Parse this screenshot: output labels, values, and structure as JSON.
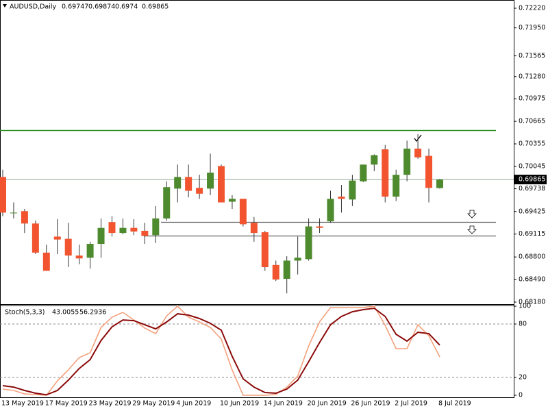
{
  "chart_data": [
    {
      "type": "candlestick",
      "title": "AUDUSD,Daily",
      "categories": [
        "13 May 2019",
        null,
        null,
        null,
        "17 May 2019",
        null,
        null,
        null,
        "23 May 2019",
        null,
        null,
        null,
        "29 May 2019",
        null,
        null,
        null,
        "4 Jun 2019",
        null,
        null,
        null,
        "10 Jun 2019",
        null,
        null,
        null,
        "14 Jun 2019",
        null,
        null,
        null,
        "20 Jun 2019",
        null,
        null,
        null,
        "26 Jun 2019",
        null,
        null,
        null,
        "2 Jul 2019",
        null,
        null,
        null,
        "8 Jul 2019"
      ],
      "open": [
        0.699,
        0.694,
        0.6943,
        0.6926,
        0.6886,
        0.6908,
        0.6905,
        0.6882,
        0.6879,
        0.6898,
        0.6928,
        0.6913,
        0.692,
        0.6916,
        0.691,
        0.6933,
        0.6974,
        0.699,
        0.6975,
        0.6974,
        0.7005,
        0.6956,
        0.696,
        0.6927,
        0.6914,
        0.6869,
        0.685,
        0.6875,
        0.6877,
        0.6922,
        0.6929,
        0.6963,
        0.6959,
        0.6984,
        0.7007,
        0.7028,
        0.6963,
        0.6993,
        0.7029,
        0.7019,
        0.69747
      ],
      "high": [
        0.7,
        0.6955,
        0.6946,
        0.693,
        0.6897,
        0.6932,
        0.6927,
        0.6897,
        0.6901,
        0.6933,
        0.6936,
        0.6933,
        0.6932,
        0.6927,
        0.695,
        0.6984,
        0.7007,
        0.7007,
        0.6993,
        0.7022,
        0.7007,
        0.6965,
        0.696,
        0.6935,
        0.6916,
        0.6875,
        0.6881,
        0.6908,
        0.6933,
        0.6933,
        0.6971,
        0.6979,
        0.6993,
        0.7007,
        0.7021,
        0.7034,
        0.7,
        0.704,
        0.7049,
        0.7029,
        0.69874
      ],
      "low": [
        0.6936,
        0.6933,
        0.6913,
        0.6884,
        0.6861,
        0.6884,
        0.6866,
        0.687,
        0.6864,
        0.6879,
        0.6908,
        0.6911,
        0.691,
        0.6898,
        0.6899,
        0.693,
        0.6955,
        0.6962,
        0.696,
        0.6965,
        0.6955,
        0.6946,
        0.6922,
        0.6901,
        0.6861,
        0.6847,
        0.683,
        0.6856,
        0.6875,
        0.6913,
        0.6927,
        0.6941,
        0.695,
        0.6983,
        0.6998,
        0.6955,
        0.6957,
        0.6984,
        0.7015,
        0.6955,
        0.6974
      ],
      "close": [
        0.6941,
        0.6941,
        0.6926,
        0.6886,
        0.6861,
        0.6904,
        0.6882,
        0.6878,
        0.6898,
        0.692,
        0.6913,
        0.692,
        0.6915,
        0.6909,
        0.6933,
        0.6976,
        0.699,
        0.6971,
        0.6967,
        0.6996,
        0.6955,
        0.696,
        0.6925,
        0.6913,
        0.6866,
        0.6849,
        0.6875,
        0.6879,
        0.6922,
        0.692,
        0.696,
        0.696,
        0.6985,
        0.7007,
        0.702,
        0.6963,
        0.6993,
        0.7029,
        0.7017,
        0.6975,
        0.69865
      ],
      "up_color": "#4e8a2e",
      "down_color": "#f2542f",
      "ylim": [
        0.68161,
        0.72333
      ],
      "yticks": [
        {
          "value": 0.7222,
          "label": "0.72220"
        },
        {
          "value": 0.7195,
          "label": "0.71950"
        },
        0.71565,
        {
          "value": 0.7128,
          "label": "0.71280"
        },
        0.70975,
        0.70665,
        0.70355,
        0.70045,
        0.69738,
        0.69425,
        0.69115,
        {
          "value": 0.688,
          "label": "0.68800"
        },
        {
          "value": 0.6849,
          "label": "0.68490"
        },
        {
          "value": 0.6818,
          "label": "0.68180"
        }
      ],
      "levels": [
        {
          "value": 0.7054,
          "color": "#2a9020"
        },
        {
          "value": 0.6928,
          "color": "#606060"
        },
        {
          "value": 0.6909,
          "color": "#606060"
        }
      ]
    },
    {
      "type": "line",
      "title": "Stoch(5,3,3)",
      "series": [
        {
          "color": "#f4a07a",
          "values": [
            6.9,
            5.4,
            1.5,
            0.8,
            0,
            16.2,
            28.5,
            42.3,
            47.7,
            76.2,
            87.7,
            93.1,
            84.6,
            75.4,
            69.2,
            89.2,
            100,
            87.7,
            82.3,
            76.2,
            63.1,
            28.5,
            0,
            0,
            0,
            0.8,
            9.2,
            21.5,
            55.4,
            82.3,
            98.5,
            98.5,
            98.5,
            98.5,
            100,
            78.5,
            52.3,
            52.3,
            79.2,
            66.9,
            43.0055
          ]
        },
        {
          "color": "#8b0a0a",
          "values": [
            10.8,
            9.2,
            5.4,
            2.3,
            0.5,
            5.4,
            16.9,
            30,
            40,
            61.5,
            76.9,
            84.6,
            83.8,
            79.2,
            74.6,
            82.3,
            91.5,
            90,
            86.2,
            80.8,
            73.1,
            43.8,
            18.5,
            9.2,
            3.1,
            2.3,
            6.9,
            16.9,
            37.7,
            59.2,
            79.2,
            88.5,
            93.8,
            96.2,
            97.7,
            88.5,
            68.5,
            60.8,
            70.8,
            69.2,
            56.2936
          ]
        }
      ],
      "ylim": [
        -2.3,
        100.8
      ],
      "yticks": [
        0,
        20,
        80,
        100
      ]
    }
  ]
}
